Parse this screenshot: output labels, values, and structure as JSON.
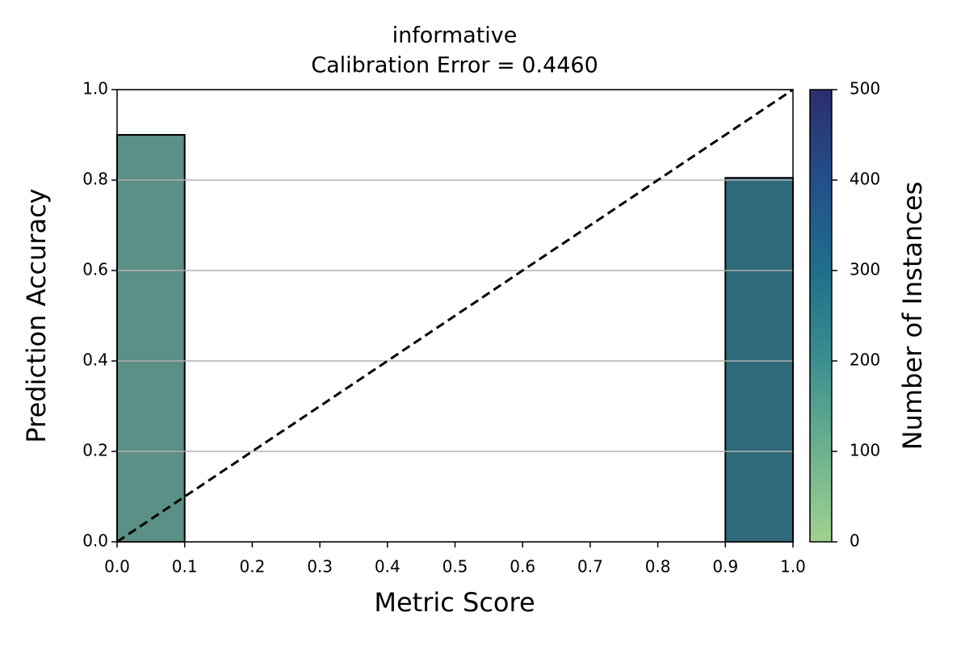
{
  "chart_data": {
    "type": "histogram",
    "title": "informative",
    "subtitle": "Calibration Error = 0.4460",
    "x_label": "Metric Score",
    "y_label": "Prediction Accuracy",
    "bins": [
      0,
      0.1,
      0.2,
      0.3,
      0.4,
      0.5,
      0.6,
      0.7,
      0.8,
      0.9,
      1
    ],
    "values": [
      0.9,
      null,
      null,
      null,
      null,
      null,
      null,
      null,
      null,
      0.805
    ],
    "bar_colors": [
      "#5a9085",
      null,
      null,
      null,
      null,
      null,
      null,
      null,
      null,
      "#2e6a7b"
    ],
    "xlim": [
      0,
      1
    ],
    "ylim": [
      0,
      1
    ],
    "xticks": [
      {
        "value": 0,
        "label": "0.0"
      },
      0.1,
      0.2,
      0.3,
      0.4,
      0.5,
      0.6,
      0.7,
      0.8,
      0.9,
      {
        "value": 1,
        "label": "1.0"
      }
    ],
    "yticks": [
      {
        "value": 0,
        "label": "0.0"
      },
      0.2,
      0.4,
      0.6,
      0.8,
      {
        "value": 1,
        "label": "1.0"
      }
    ],
    "grid": true,
    "colorbar": {
      "label": "Number of Instances",
      "lim": [
        0,
        500
      ],
      "ticks": [
        0,
        100,
        200,
        300,
        400,
        500
      ],
      "colors": [
        "#a1d190",
        "#6cb28f",
        "#3b8f8f",
        "#1f6f8c",
        "#234f8a",
        "#2c2e6d"
      ]
    }
  }
}
